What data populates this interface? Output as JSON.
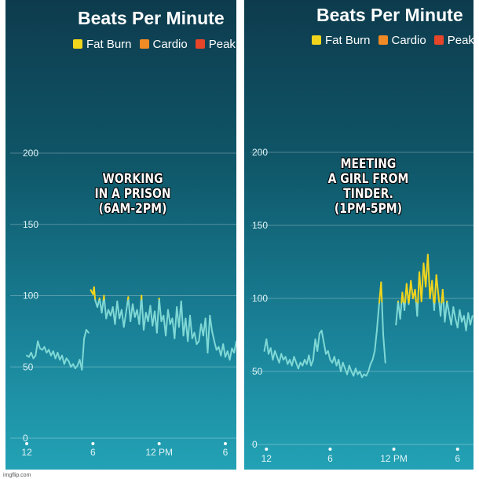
{
  "watermark": "imgflip.com",
  "colors": {
    "fat_burn": "#f1d41c",
    "cardio": "#f08a24",
    "peak": "#e6452a",
    "normal_line": "#7fd8d5",
    "gridline": "rgba(255,255,255,0.28)",
    "axis_text": "#dff4f7"
  },
  "legend": [
    {
      "label": "Fat Burn",
      "color": "#f1d41c"
    },
    {
      "label": "Cardio",
      "color": "#f08a24"
    },
    {
      "label": "Peak",
      "color": "#e6452a"
    }
  ],
  "panels": [
    {
      "title": "Beats Per Minute",
      "caption": "WORKING\nIN A PRISON\n(6AM-2PM)",
      "chart_data": {
        "type": "line",
        "title": "Beats Per Minute",
        "xlabel": "",
        "ylabel": "",
        "ylim": [
          0,
          200
        ],
        "yticks": [
          0,
          50,
          100,
          150,
          200
        ],
        "xlim": [
          -1.5,
          19.0
        ],
        "xticks": [
          {
            "x": 0,
            "label": "12"
          },
          {
            "x": 6,
            "label": "6"
          },
          {
            "x": 12,
            "label": "12 PM"
          },
          {
            "x": 18,
            "label": "6"
          }
        ],
        "fat_burn_threshold": 97,
        "grid": true,
        "series": [
          {
            "name": "",
            "x": [
              0.0,
              0.2,
              0.4,
              0.6,
              0.8,
              1.0,
              1.2,
              1.4,
              1.6,
              1.8,
              2.0,
              2.2,
              2.4,
              2.6,
              2.8,
              3.0,
              3.2,
              3.4,
              3.6,
              3.8,
              4.0,
              4.2,
              4.4,
              4.6,
              4.8,
              5.0,
              5.2,
              5.4,
              5.6
            ],
            "y": [
              58,
              57,
              60,
              56,
              58,
              68,
              63,
              62,
              64,
              60,
              62,
              58,
              61,
              56,
              60,
              55,
              58,
              52,
              56,
              54,
              50,
              52,
              49,
              51,
              55,
              48,
              70,
              76,
              74
            ]
          },
          {
            "name": "",
            "x": [
              5.8,
              6.0,
              6.1,
              6.2,
              6.4,
              6.6,
              6.8,
              7.0,
              7.2,
              7.4,
              7.6,
              7.8,
              8.0,
              8.2,
              8.4,
              8.6,
              8.8,
              9.0,
              9.2,
              9.4,
              9.6,
              9.8,
              10.0,
              10.2,
              10.4,
              10.6,
              10.8,
              11.0,
              11.2,
              11.4,
              11.6,
              11.8,
              12.0,
              12.2,
              12.4,
              12.6,
              12.8,
              13.0,
              13.2,
              13.4,
              13.6,
              13.8,
              14.0,
              14.2,
              14.4,
              14.6,
              14.8,
              15.0,
              15.2,
              15.4,
              15.6,
              15.8,
              16.0,
              16.2,
              16.4,
              16.6,
              16.8,
              17.0,
              17.2,
              17.4,
              17.6,
              17.8,
              18.0,
              18.2,
              18.4,
              18.6,
              18.8,
              19.0
            ],
            "y": [
              104,
              101,
              106,
              97,
              92,
              98,
              88,
              100,
              84,
              90,
              86,
              92,
              80,
              96,
              84,
              90,
              78,
              88,
              99,
              82,
              94,
              85,
              90,
              80,
              100,
              76,
              88,
              82,
              93,
              79,
              89,
              74,
              98,
              82,
              86,
              72,
              90,
              80,
              84,
              70,
              92,
              78,
              96,
              72,
              84,
              68,
              86,
              70,
              74,
              66,
              68,
              80,
              72,
              84,
              60,
              86,
              75,
              68,
              62,
              64,
              58,
              66,
              57,
              61,
              55,
              63,
              60,
              68
            ]
          }
        ]
      }
    },
    {
      "title": "Beats Per Minute",
      "caption": "MEETING\nA GIRL FROM\nTINDER.\n(1PM-5PM)",
      "chart_data": {
        "type": "line",
        "title": "Beats Per Minute",
        "xlabel": "",
        "ylabel": "",
        "ylim": [
          0,
          200
        ],
        "yticks": [
          0,
          50,
          100,
          150,
          200
        ],
        "xlim": [
          -1.5,
          19.5
        ],
        "xticks": [
          {
            "x": 0,
            "label": "12"
          },
          {
            "x": 6,
            "label": "6"
          },
          {
            "x": 12,
            "label": "12 PM"
          },
          {
            "x": 18,
            "label": "6"
          }
        ],
        "fat_burn_threshold": 97,
        "grid": true,
        "series": [
          {
            "name": "",
            "x": [
              -0.2,
              0.0,
              0.2,
              0.4,
              0.6,
              0.8,
              1.0,
              1.2,
              1.4,
              1.6,
              1.8,
              2.0,
              2.2,
              2.4,
              2.6,
              2.8,
              3.0,
              3.2,
              3.4,
              3.6,
              3.8,
              4.0,
              4.2,
              4.4,
              4.6,
              4.8,
              5.0,
              5.2,
              5.4,
              5.6,
              5.8,
              6.0,
              6.2,
              6.4,
              6.6,
              6.8,
              7.0,
              7.2,
              7.4,
              7.6,
              7.8,
              8.0,
              8.2,
              8.4,
              8.6,
              8.8,
              9.0,
              9.2,
              9.4,
              9.6,
              9.8,
              10.0,
              10.2,
              10.4,
              10.6,
              10.8,
              11.0,
              11.2
            ],
            "y": [
              64,
              72,
              62,
              66,
              58,
              64,
              60,
              56,
              62,
              58,
              60,
              55,
              58,
              54,
              60,
              56,
              52,
              56,
              54,
              58,
              55,
              61,
              54,
              58,
              72,
              64,
              76,
              78,
              70,
              62,
              64,
              58,
              56,
              60,
              54,
              58,
              50,
              56,
              52,
              48,
              54,
              50,
              47,
              52,
              48,
              50,
              46,
              48,
              47,
              50,
              55,
              58,
              64,
              78,
              95,
              111,
              75,
              56
            ]
          },
          {
            "name": "",
            "x": [
              12.2,
              12.4,
              12.6,
              12.8,
              13.0,
              13.2,
              13.4,
              13.6,
              13.8,
              14.0,
              14.2,
              14.4,
              14.6,
              14.8,
              15.0,
              15.2,
              15.4,
              15.6,
              15.8,
              16.0,
              16.2,
              16.4,
              16.6,
              16.8,
              17.0,
              17.2,
              17.4,
              17.6,
              17.8,
              18.0,
              18.2,
              18.4,
              18.6,
              18.8,
              19.0,
              19.2,
              19.4
            ],
            "y": [
              82,
              98,
              86,
              104,
              92,
              110,
              96,
              112,
              100,
              106,
              88,
              118,
              98,
              124,
              108,
              130,
              100,
              112,
              92,
              116,
              102,
              88,
              106,
              84,
              98,
              90,
              82,
              94,
              86,
              80,
              92,
              84,
              88,
              78,
              90,
              82,
              88
            ]
          }
        ]
      }
    }
  ]
}
